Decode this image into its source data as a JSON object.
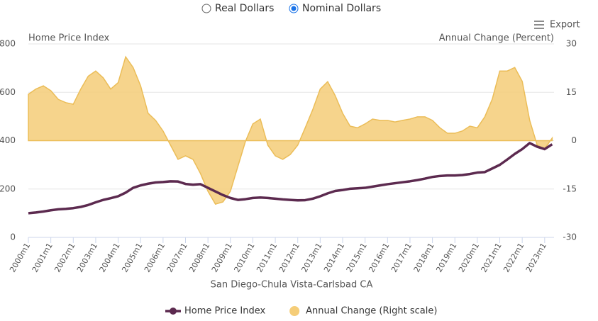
{
  "chart_data": {
    "type": "line",
    "toggle_options": [
      "Real Dollars",
      "Nominal Dollars"
    ],
    "selected_option": 1,
    "export_label": "Export",
    "y_title": "Home Price Index",
    "y2_title": "Annual Change (Percent)",
    "x_title": "San Diego-Chula Vista-Carlsbad CA",
    "x": [
      "2000m1",
      "2000m5",
      "2000m9",
      "2001m1",
      "2001m5",
      "2001m9",
      "2002m1",
      "2002m5",
      "2002m9",
      "2003m1",
      "2003m5",
      "2003m9",
      "2004m1",
      "2004m5",
      "2004m9",
      "2005m1",
      "2005m5",
      "2005m9",
      "2006m1",
      "2006m5",
      "2006m9",
      "2007m1",
      "2007m5",
      "2007m9",
      "2008m1",
      "2008m5",
      "2008m9",
      "2009m1",
      "2009m5",
      "2009m9",
      "2010m1",
      "2010m5",
      "2010m9",
      "2011m1",
      "2011m5",
      "2011m9",
      "2012m1",
      "2012m5",
      "2012m9",
      "2013m1",
      "2013m5",
      "2013m9",
      "2014m1",
      "2014m5",
      "2014m9",
      "2015m1",
      "2015m5",
      "2015m9",
      "2016m1",
      "2016m5",
      "2016m9",
      "2017m1",
      "2017m5",
      "2017m9",
      "2018m1",
      "2018m5",
      "2018m9",
      "2019m1",
      "2019m5",
      "2019m9",
      "2020m1",
      "2020m5",
      "2020m9",
      "2021m1",
      "2021m5",
      "2021m9",
      "2022m1",
      "2022m5",
      "2022m9",
      "2023m1",
      "2023m5"
    ],
    "xlim": [
      "2000m1",
      "2023m6"
    ],
    "xticks": [
      "2000m1",
      "2001m1",
      "2002m1",
      "2003m1",
      "2004m1",
      "2005m1",
      "2006m1",
      "2007m1",
      "2008m1",
      "2009m1",
      "2010m1",
      "2011m1",
      "2012m1",
      "2013m1",
      "2014m1",
      "2015m1",
      "2016m1",
      "2017m1",
      "2018m1",
      "2019m1",
      "2020m1",
      "2021m1",
      "2022m1",
      "2023m1"
    ],
    "ylim": [
      0,
      800
    ],
    "yticks": [
      0,
      200,
      400,
      600,
      800
    ],
    "y2lim": [
      -30,
      30
    ],
    "y2ticks": [
      -30,
      -15,
      0,
      15,
      30
    ],
    "grid": true,
    "series": [
      {
        "name": "Home Price Index",
        "color": "#5c2a4f",
        "type": "line",
        "values": [
          100,
          103,
          107,
          112,
          116,
          118,
          121,
          126,
          134,
          145,
          155,
          162,
          170,
          185,
          205,
          215,
          222,
          227,
          229,
          232,
          231,
          221,
          218,
          220,
          205,
          190,
          175,
          163,
          155,
          158,
          163,
          165,
          163,
          160,
          157,
          155,
          153,
          154,
          160,
          170,
          182,
          192,
          196,
          201,
          203,
          205,
          210,
          215,
          220,
          224,
          228,
          232,
          237,
          243,
          250,
          254,
          256,
          256,
          258,
          262,
          268,
          270,
          285,
          300,
          322,
          345,
          365,
          390,
          375,
          365,
          385
        ]
      },
      {
        "name": "Annual Change (Right scale)",
        "color": "#f5cd78",
        "type": "area",
        "axis": "y2",
        "values": [
          14.4,
          16,
          17,
          15.5,
          12.8,
          11.8,
          11.3,
          16,
          20,
          21.6,
          19.5,
          16,
          18,
          26,
          22.7,
          17,
          8.5,
          6.3,
          3,
          -1.4,
          -5.8,
          -4.7,
          -5.8,
          -10.2,
          -15.7,
          -19.7,
          -19,
          -15.7,
          -8,
          -0.3,
          5.2,
          6.7,
          -1.4,
          -4.7,
          -5.8,
          -4.3,
          -1.4,
          4,
          9.6,
          16,
          18.3,
          14,
          8.5,
          4.5,
          4,
          5.2,
          6.7,
          6.3,
          6.3,
          5.8,
          6.3,
          6.7,
          7.4,
          7.4,
          6.3,
          4,
          2.3,
          2.3,
          3,
          4.5,
          4,
          7.4,
          12.9,
          21.6,
          21.6,
          22.7,
          18.4,
          6.3,
          -1.4,
          -2.5,
          0.8
        ]
      }
    ]
  }
}
